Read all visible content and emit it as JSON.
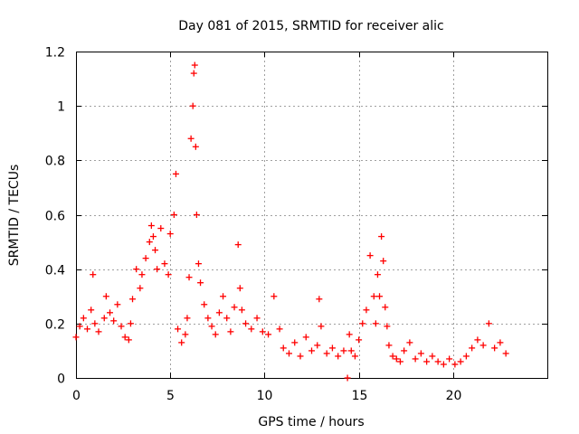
{
  "chart_data": {
    "type": "scatter",
    "title": "Day 081 of 2015, SRMTID for receiver alic",
    "xlabel": "GPS time / hours",
    "ylabel": "SRMTID / TECUs",
    "xlim": [
      0,
      25
    ],
    "ylim": [
      0,
      1.2
    ],
    "xticks": [
      0,
      5,
      10,
      15,
      20
    ],
    "xtick_labels": [
      "0",
      "5",
      "10",
      "15",
      "20"
    ],
    "yticks": [
      0,
      0.2,
      0.4,
      0.6,
      0.8,
      1.0,
      1.2
    ],
    "ytick_labels": [
      "0",
      "0.2",
      "0.4",
      "0.6",
      "0.8",
      "1",
      "1.2"
    ],
    "grid": true,
    "marker": "+",
    "marker_color": "#ff0000",
    "series": [
      {
        "name": "SRMTID",
        "x": [
          0.0,
          0.2,
          0.4,
          0.6,
          0.8,
          0.9,
          1.0,
          1.2,
          1.5,
          1.6,
          1.8,
          2.0,
          2.2,
          2.4,
          2.6,
          2.8,
          2.9,
          3.0,
          3.2,
          3.4,
          3.5,
          3.7,
          3.9,
          4.0,
          4.1,
          4.2,
          4.3,
          4.5,
          4.7,
          4.9,
          5.0,
          5.2,
          5.3,
          5.4,
          5.6,
          5.8,
          5.9,
          6.0,
          6.1,
          6.2,
          6.25,
          6.3,
          6.35,
          6.4,
          6.5,
          6.6,
          6.8,
          7.0,
          7.2,
          7.4,
          7.6,
          7.8,
          8.0,
          8.2,
          8.4,
          8.6,
          8.7,
          8.8,
          9.0,
          9.3,
          9.6,
          9.9,
          10.2,
          10.5,
          10.8,
          11.0,
          11.3,
          11.6,
          11.9,
          12.2,
          12.5,
          12.8,
          12.9,
          13.0,
          13.3,
          13.6,
          13.9,
          14.2,
          14.4,
          14.5,
          14.6,
          14.8,
          15.0,
          15.2,
          15.4,
          15.6,
          15.8,
          15.9,
          16.0,
          16.1,
          16.2,
          16.3,
          16.4,
          16.5,
          16.6,
          16.8,
          17.0,
          17.2,
          17.4,
          17.7,
          18.0,
          18.3,
          18.6,
          18.9,
          19.2,
          19.5,
          19.8,
          20.1,
          20.4,
          20.7,
          21.0,
          21.3,
          21.6,
          21.9,
          22.2,
          22.5,
          22.8
        ],
        "y": [
          0.15,
          0.19,
          0.22,
          0.18,
          0.25,
          0.38,
          0.2,
          0.17,
          0.22,
          0.3,
          0.24,
          0.21,
          0.27,
          0.19,
          0.15,
          0.14,
          0.2,
          0.29,
          0.4,
          0.33,
          0.38,
          0.44,
          0.5,
          0.56,
          0.52,
          0.47,
          0.4,
          0.55,
          0.42,
          0.38,
          0.53,
          0.6,
          0.75,
          0.18,
          0.13,
          0.16,
          0.22,
          0.37,
          0.88,
          1.0,
          1.12,
          1.15,
          0.85,
          0.6,
          0.42,
          0.35,
          0.27,
          0.22,
          0.19,
          0.16,
          0.24,
          0.3,
          0.22,
          0.17,
          0.26,
          0.49,
          0.33,
          0.25,
          0.2,
          0.18,
          0.22,
          0.17,
          0.16,
          0.3,
          0.18,
          0.11,
          0.09,
          0.13,
          0.08,
          0.15,
          0.1,
          0.12,
          0.29,
          0.19,
          0.09,
          0.11,
          0.08,
          0.1,
          0.0,
          0.16,
          0.1,
          0.08,
          0.14,
          0.2,
          0.25,
          0.45,
          0.3,
          0.2,
          0.38,
          0.3,
          0.52,
          0.43,
          0.26,
          0.19,
          0.12,
          0.08,
          0.07,
          0.06,
          0.1,
          0.13,
          0.07,
          0.09,
          0.06,
          0.08,
          0.06,
          0.05,
          0.07,
          0.05,
          0.06,
          0.08,
          0.11,
          0.14,
          0.12,
          0.2,
          0.11,
          0.13,
          0.09
        ]
      }
    ]
  }
}
